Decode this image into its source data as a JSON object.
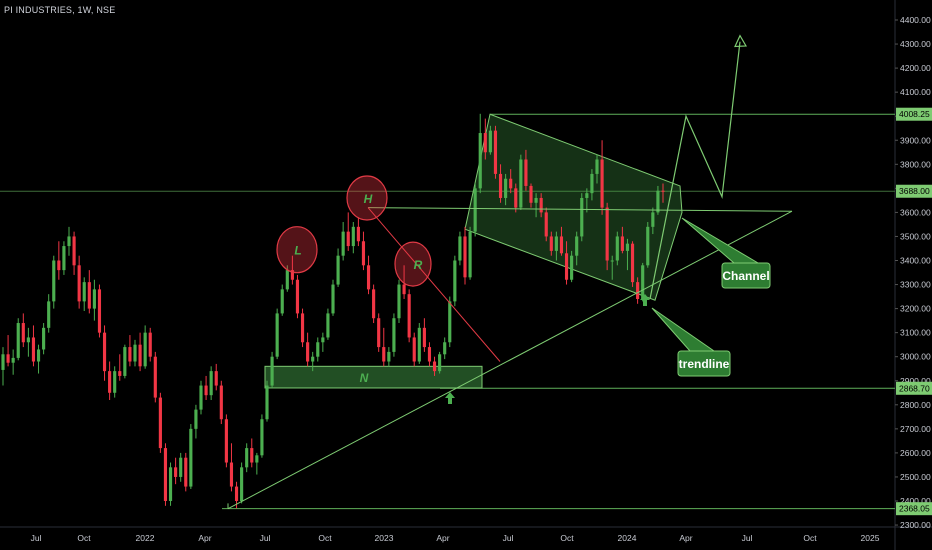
{
  "symbol_title": "PI INDUSTRIES, 1W, NSE",
  "chart_data": {
    "type": "candlestick",
    "title": "PI INDUSTRIES, 1W, NSE",
    "y_axis": {
      "position": "right",
      "ylim": [
        2290,
        4450
      ],
      "ticks": [
        2300,
        2400,
        2500,
        2600,
        2700,
        2800,
        2900,
        3000,
        3100,
        3200,
        3300,
        3400,
        3500,
        3600,
        3700,
        3800,
        3900,
        4000,
        4100,
        4200,
        4300,
        4400
      ],
      "tick_labels": [
        "2300.00",
        "2400.00",
        "2500.00",
        "2600.00",
        "2700.00",
        "2800.00",
        "2900.00",
        "3000.00",
        "3100.00",
        "3200.00",
        "3300.00",
        "3400.00",
        "3500.00",
        "3600.00",
        "3700.00",
        "3800.00",
        "3900.00",
        "4000.00",
        "4100.00",
        "4200.00",
        "4300.00",
        "4400.00"
      ]
    },
    "x_axis": {
      "labels": [
        "Jul",
        "Oct",
        "2022",
        "Apr",
        "Jul",
        "Oct",
        "2023",
        "Apr",
        "Jul",
        "Oct",
        "2024",
        "Apr",
        "Jul",
        "Oct",
        "2025"
      ]
    },
    "price_tags": [
      {
        "value": 4008.25,
        "label": "4008.25"
      },
      {
        "value": 3688.0,
        "label": "3688.00"
      },
      {
        "value": 2868.7,
        "label": "2868.70"
      },
      {
        "value": 2368.05,
        "label": "2368.05"
      }
    ],
    "candles": [
      [
        2945,
        3040,
        2880,
        3010
      ],
      [
        3010,
        3090,
        2960,
        2975
      ],
      [
        2975,
        3030,
        2925,
        2995
      ],
      [
        2995,
        3160,
        2985,
        3140
      ],
      [
        3140,
        3180,
        3040,
        3060
      ],
      [
        3060,
        3120,
        3000,
        3080
      ],
      [
        3080,
        3130,
        2960,
        2980
      ],
      [
        2980,
        3050,
        2930,
        3030
      ],
      [
        3030,
        3140,
        3010,
        3120
      ],
      [
        3120,
        3260,
        3100,
        3230
      ],
      [
        3230,
        3420,
        3200,
        3400
      ],
      [
        3400,
        3480,
        3320,
        3360
      ],
      [
        3360,
        3480,
        3340,
        3460
      ],
      [
        3460,
        3540,
        3420,
        3500
      ],
      [
        3500,
        3520,
        3340,
        3380
      ],
      [
        3380,
        3420,
        3200,
        3230
      ],
      [
        3230,
        3330,
        3190,
        3310
      ],
      [
        3310,
        3360,
        3180,
        3200
      ],
      [
        3200,
        3320,
        3150,
        3280
      ],
      [
        3280,
        3300,
        3080,
        3100
      ],
      [
        3100,
        3130,
        2900,
        2940
      ],
      [
        2940,
        2980,
        2820,
        2850
      ],
      [
        2850,
        2960,
        2830,
        2940
      ],
      [
        2940,
        3010,
        2900,
        2920
      ],
      [
        2920,
        3050,
        2910,
        3040
      ],
      [
        3040,
        3090,
        2960,
        2980
      ],
      [
        2980,
        3070,
        2960,
        3050
      ],
      [
        3050,
        3100,
        2940,
        2960
      ],
      [
        2960,
        3130,
        2950,
        3100
      ],
      [
        3100,
        3120,
        2980,
        3000
      ],
      [
        3000,
        3020,
        2810,
        2830
      ],
      [
        2830,
        2850,
        2600,
        2620
      ],
      [
        2620,
        2640,
        2380,
        2400
      ],
      [
        2400,
        2560,
        2380,
        2540
      ],
      [
        2540,
        2580,
        2470,
        2500
      ],
      [
        2500,
        2600,
        2480,
        2580
      ],
      [
        2580,
        2600,
        2440,
        2460
      ],
      [
        2460,
        2720,
        2450,
        2700
      ],
      [
        2700,
        2800,
        2660,
        2780
      ],
      [
        2780,
        2900,
        2760,
        2880
      ],
      [
        2880,
        2920,
        2820,
        2840
      ],
      [
        2840,
        2960,
        2820,
        2940
      ],
      [
        2940,
        2970,
        2860,
        2880
      ],
      [
        2880,
        2900,
        2720,
        2740
      ],
      [
        2740,
        2760,
        2540,
        2560
      ],
      [
        2560,
        2640,
        2440,
        2460
      ],
      [
        2460,
        2480,
        2370,
        2400
      ],
      [
        2400,
        2560,
        2390,
        2540
      ],
      [
        2540,
        2640,
        2520,
        2620
      ],
      [
        2620,
        2660,
        2540,
        2560
      ],
      [
        2560,
        2600,
        2510,
        2590
      ],
      [
        2590,
        2760,
        2580,
        2740
      ],
      [
        2740,
        2900,
        2730,
        2880
      ],
      [
        2880,
        3020,
        2870,
        3000
      ],
      [
        3000,
        3200,
        2990,
        3180
      ],
      [
        3180,
        3300,
        3170,
        3280
      ],
      [
        3280,
        3380,
        3270,
        3360
      ],
      [
        3360,
        3420,
        3300,
        3320
      ],
      [
        3320,
        3340,
        3160,
        3180
      ],
      [
        3180,
        3200,
        3040,
        3060
      ],
      [
        3060,
        3100,
        2960,
        2980
      ],
      [
        2980,
        3020,
        2940,
        3000
      ],
      [
        3000,
        3080,
        2980,
        3060
      ],
      [
        3060,
        3100,
        3020,
        3080
      ],
      [
        3080,
        3200,
        3070,
        3180
      ],
      [
        3180,
        3320,
        3170,
        3300
      ],
      [
        3300,
        3450,
        3290,
        3420
      ],
      [
        3420,
        3560,
        3400,
        3520
      ],
      [
        3520,
        3600,
        3440,
        3460
      ],
      [
        3460,
        3560,
        3430,
        3540
      ],
      [
        3540,
        3580,
        3460,
        3480
      ],
      [
        3480,
        3520,
        3360,
        3380
      ],
      [
        3380,
        3420,
        3260,
        3280
      ],
      [
        3280,
        3300,
        3140,
        3160
      ],
      [
        3160,
        3180,
        3020,
        3040
      ],
      [
        3040,
        3120,
        2960,
        2980
      ],
      [
        2980,
        3040,
        2960,
        3020
      ],
      [
        3020,
        3180,
        3000,
        3160
      ],
      [
        3160,
        3320,
        3140,
        3300
      ],
      [
        3300,
        3380,
        3240,
        3260
      ],
      [
        3260,
        3280,
        3060,
        3080
      ],
      [
        3080,
        3100,
        2960,
        2980
      ],
      [
        2980,
        3140,
        2970,
        3120
      ],
      [
        3120,
        3160,
        3020,
        3040
      ],
      [
        3040,
        3060,
        2960,
        2980
      ],
      [
        2980,
        3000,
        2920,
        2940
      ],
      [
        2940,
        3020,
        2930,
        3010
      ],
      [
        3010,
        3080,
        2990,
        3060
      ],
      [
        3060,
        3250,
        3040,
        3230
      ],
      [
        3230,
        3420,
        3210,
        3400
      ],
      [
        3400,
        3520,
        3380,
        3500
      ],
      [
        3500,
        3540,
        3300,
        3330
      ],
      [
        3330,
        3540,
        3320,
        3520
      ],
      [
        3520,
        3720,
        3500,
        3700
      ],
      [
        3700,
        4010,
        3680,
        3930
      ],
      [
        3930,
        3990,
        3820,
        3850
      ],
      [
        3850,
        3960,
        3840,
        3940
      ],
      [
        3940,
        3960,
        3740,
        3760
      ],
      [
        3760,
        3800,
        3640,
        3660
      ],
      [
        3660,
        3760,
        3630,
        3740
      ],
      [
        3740,
        3780,
        3680,
        3700
      ],
      [
        3700,
        3720,
        3600,
        3620
      ],
      [
        3620,
        3840,
        3610,
        3820
      ],
      [
        3820,
        3860,
        3690,
        3710
      ],
      [
        3710,
        3720,
        3620,
        3640
      ],
      [
        3640,
        3680,
        3580,
        3660
      ],
      [
        3660,
        3680,
        3580,
        3600
      ],
      [
        3600,
        3620,
        3480,
        3500
      ],
      [
        3500,
        3520,
        3420,
        3440
      ],
      [
        3440,
        3520,
        3400,
        3500
      ],
      [
        3500,
        3540,
        3420,
        3430
      ],
      [
        3430,
        3480,
        3300,
        3320
      ],
      [
        3320,
        3440,
        3310,
        3420
      ],
      [
        3420,
        3520,
        3380,
        3500
      ],
      [
        3500,
        3680,
        3480,
        3660
      ],
      [
        3660,
        3700,
        3600,
        3680
      ],
      [
        3680,
        3780,
        3650,
        3760
      ],
      [
        3760,
        3840,
        3720,
        3820
      ],
      [
        3820,
        3900,
        3590,
        3620
      ],
      [
        3620,
        3640,
        3360,
        3400
      ],
      [
        3400,
        3420,
        3320,
        3400
      ],
      [
        3400,
        3520,
        3380,
        3500
      ],
      [
        3500,
        3540,
        3430,
        3440
      ],
      [
        3440,
        3490,
        3360,
        3470
      ],
      [
        3470,
        3480,
        3290,
        3310
      ],
      [
        3310,
        3330,
        3220,
        3240
      ],
      [
        3240,
        3390,
        3230,
        3380
      ],
      [
        3380,
        3560,
        3370,
        3540
      ],
      [
        3540,
        3620,
        3510,
        3600
      ],
      [
        3600,
        3710,
        3590,
        3690
      ],
      [
        3690,
        3720,
        3640,
        3688
      ]
    ]
  },
  "annotations": {
    "channel": "Channel",
    "trendline": "trendline",
    "neckline": "N",
    "left_shoulder": "L",
    "head": "H",
    "right_shoulder": "R"
  },
  "colors": {
    "up": "#4caf50",
    "down": "#f23645",
    "drawing": "#7ecb72",
    "callout_bg": "#2e7d32"
  }
}
